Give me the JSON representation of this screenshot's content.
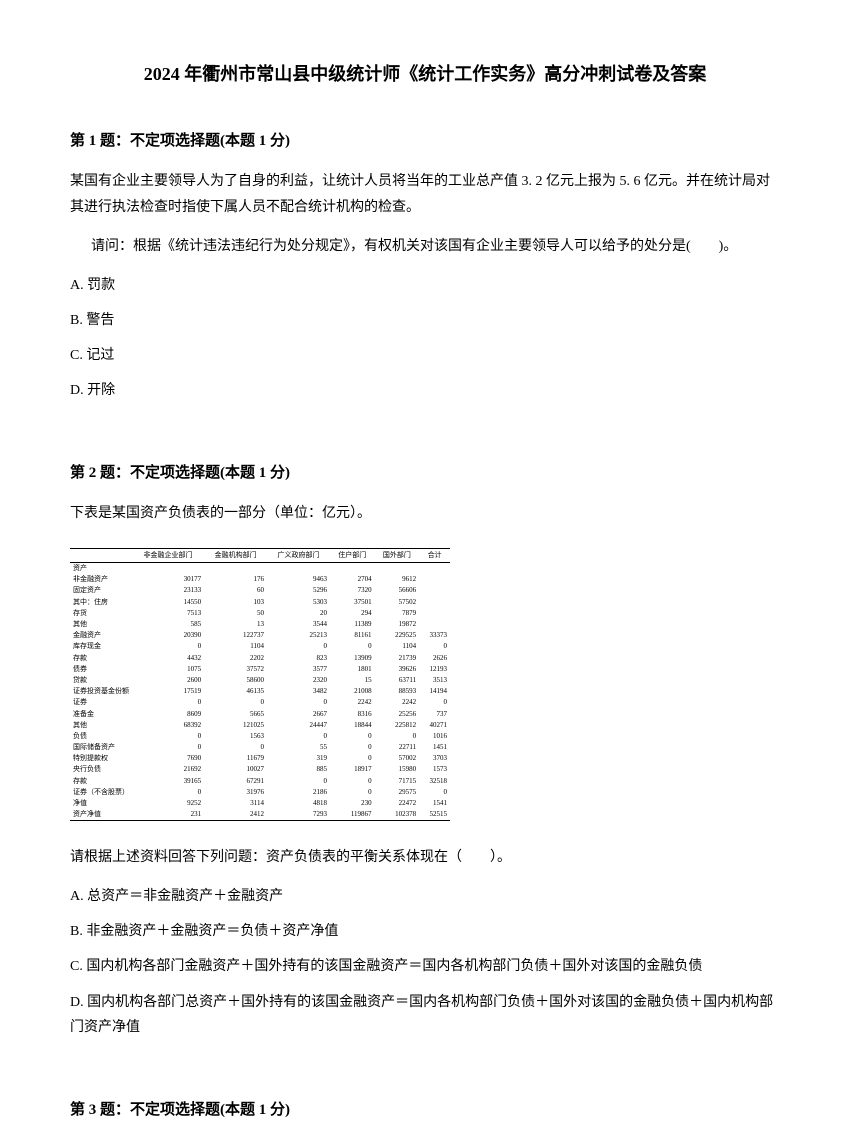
{
  "title": "2024 年衢州市常山县中级统计师《统计工作实务》高分冲刺试卷及答案",
  "q1": {
    "header": "第 1 题：不定项选择题(本题 1 分)",
    "body": "某国有企业主要领导人为了自身的利益，让统计人员将当年的工业总产值 3. 2 亿元上报为 5. 6 亿元。并在统计局对其进行执法检查时指使下属人员不配合统计机构的检查。",
    "sub": "请问：根据《统计违法违纪行为处分规定》，有权机关对该国有企业主要领导人可以给予的处分是(　　)。",
    "options": {
      "a": "A. 罚款",
      "b": "B. 警告",
      "c": "C. 记过",
      "d": "D. 开除"
    }
  },
  "q2": {
    "header": "第 2 题：不定项选择题(本题 1 分)",
    "body": "下表是某国资产负债表的一部分（单位：亿元）。",
    "table": {
      "headers": [
        "",
        "非金融企业部门",
        "金融机构部门",
        "广义政府部门",
        "住户部门",
        "国外部门",
        "合计"
      ],
      "rows": [
        [
          "资产",
          "",
          "",
          "",
          "",
          "",
          ""
        ],
        [
          "非金融资产",
          "30177",
          "176",
          "9463",
          "2704",
          "9612",
          ""
        ],
        [
          "固定资产",
          "23133",
          "60",
          "5296",
          "7320",
          "56606",
          ""
        ],
        [
          "其中：住房",
          "14550",
          "103",
          "5303",
          "37501",
          "57502",
          ""
        ],
        [
          "存货",
          "7513",
          "50",
          "20",
          "294",
          "7879",
          ""
        ],
        [
          "其他",
          "585",
          "13",
          "3544",
          "11389",
          "19872",
          ""
        ],
        [
          "金融资产",
          "20390",
          "122737",
          "25213",
          "81161",
          "229525",
          "33373"
        ],
        [
          "库存现金",
          "0",
          "1104",
          "0",
          "0",
          "1104",
          "0"
        ],
        [
          "存款",
          "4432",
          "2202",
          "823",
          "13909",
          "21739",
          "2626"
        ],
        [
          "债券",
          "1075",
          "37572",
          "3577",
          "1801",
          "39626",
          "12193"
        ],
        [
          "贷款",
          "2600",
          "58600",
          "2320",
          "15",
          "63711",
          "3513"
        ],
        [
          "证券投资基金份额",
          "17519",
          "46135",
          "3482",
          "21008",
          "88593",
          "14194"
        ],
        [
          "证券",
          "0",
          "0",
          "0",
          "2242",
          "2242",
          "0"
        ],
        [
          "准备金",
          "8609",
          "5665",
          "2667",
          "8316",
          "25256",
          "737"
        ],
        [
          "其他",
          "68392",
          "121025",
          "24447",
          "18844",
          "225812",
          "40271"
        ],
        [
          "负债",
          "0",
          "1563",
          "0",
          "0",
          "0",
          "1016"
        ],
        [
          "国际储备资产",
          "0",
          "0",
          "55",
          "0",
          "22711",
          "1451"
        ],
        [
          "特别提款权",
          "7690",
          "11679",
          "319",
          "0",
          "57002",
          "3703"
        ],
        [
          "央行负债",
          "21692",
          "10027",
          "885",
          "18917",
          "15980",
          "1573"
        ],
        [
          "存款",
          "39165",
          "67291",
          "0",
          "0",
          "71715",
          "32518"
        ],
        [
          "证券（不含股票）",
          "0",
          "31976",
          "2186",
          "0",
          "29575",
          "0"
        ],
        [
          "净值",
          "9252",
          "3114",
          "4818",
          "230",
          "22472",
          "1541"
        ],
        [
          "资产净值",
          "231",
          "2412",
          "7293",
          "119867",
          "102378",
          "52515"
        ]
      ]
    },
    "followup": "请根据上述资料回答下列问题：资产负债表的平衡关系体现在（　　）。",
    "options": {
      "a": "A. 总资产＝非金融资产＋金融资产",
      "b": "B. 非金融资产＋金融资产＝负债＋资产净值",
      "c": "C. 国内机构各部门金融资产＋国外持有的该国金融资产＝国内各机构部门负债＋国外对该国的金融负债",
      "d": "D. 国内机构各部门总资产＋国外持有的该国金融资产＝国内各机构部门负债＋国外对该国的金融负债＋国内机构部门资产净值"
    }
  },
  "q3": {
    "header": "第 3 题：不定项选择题(本题 1 分)"
  }
}
